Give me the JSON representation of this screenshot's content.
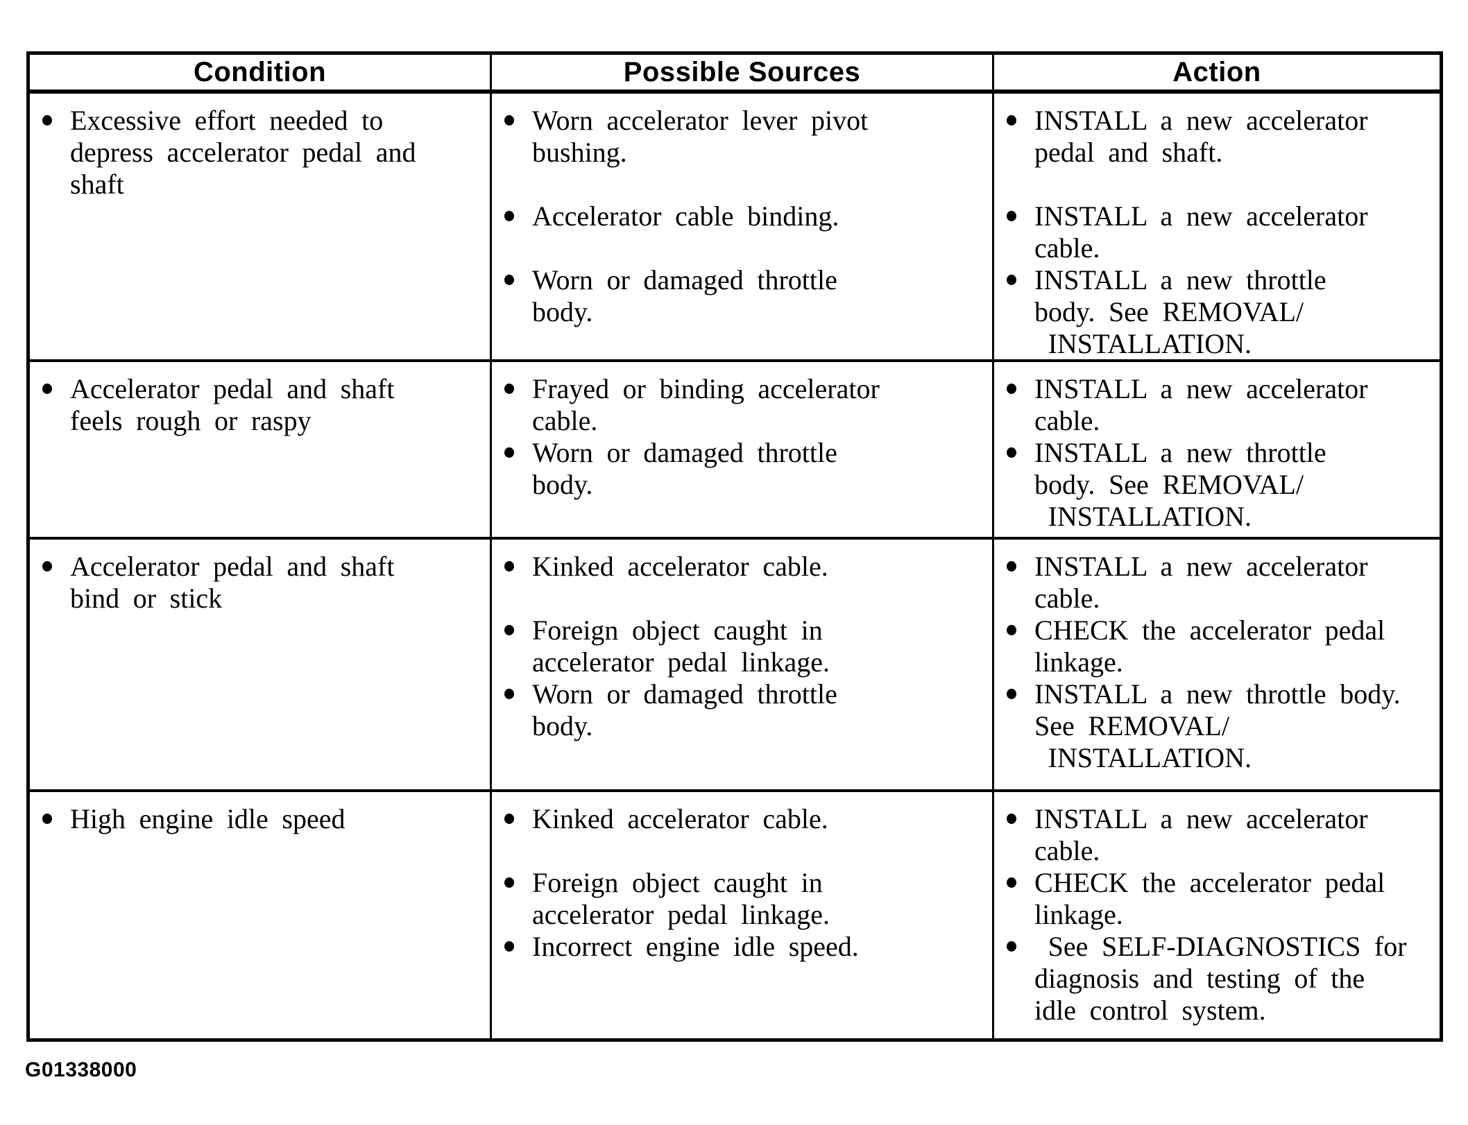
{
  "table": {
    "headers": [
      "Condition",
      "Possible Sources",
      "Action"
    ],
    "rows": [
      {
        "condition": "Excessive effort needed to\ndepress accelerator pedal and\nshaft",
        "sources": [
          "Worn accelerator lever pivot\nbushing.",
          "Accelerator cable binding.",
          "Worn or damaged throttle\nbody."
        ],
        "actions": [
          "INSTALL a new accelerator\npedal and shaft.",
          "INSTALL a new accelerator\ncable.",
          "INSTALL a new throttle\nbody. See REMOVAL/\n INSTALLATION."
        ]
      },
      {
        "condition": "Accelerator pedal and shaft\nfeels rough or raspy",
        "sources": [
          "Frayed or binding accelerator\ncable.",
          "Worn or damaged throttle\nbody."
        ],
        "actions": [
          "INSTALL a new accelerator\ncable.",
          "INSTALL a new throttle\nbody. See REMOVAL/\n INSTALLATION."
        ]
      },
      {
        "condition": "Accelerator pedal and shaft\nbind or stick",
        "sources": [
          "Kinked accelerator cable.",
          "Foreign object caught in\naccelerator pedal linkage.",
          "Worn or damaged throttle\nbody."
        ],
        "actions": [
          "INSTALL a new accelerator\ncable.",
          "CHECK the accelerator pedal\nlinkage.",
          "INSTALL a new throttle body.\nSee REMOVAL/\n INSTALLATION."
        ]
      },
      {
        "condition": "High engine idle speed",
        "sources": [
          "Kinked accelerator cable.",
          "Foreign object caught in\naccelerator pedal linkage.",
          "Incorrect engine idle speed."
        ],
        "actions": [
          "INSTALL a new accelerator\ncable.",
          "CHECK the accelerator pedal\nlinkage.",
          " See SELF-DIAGNOSTICS for\ndiagnosis and testing of the\nidle control system."
        ]
      }
    ]
  },
  "footer": {
    "figure_id": "G01338000"
  },
  "colors": {
    "ink": "#000000",
    "paper": "#ffffff"
  }
}
